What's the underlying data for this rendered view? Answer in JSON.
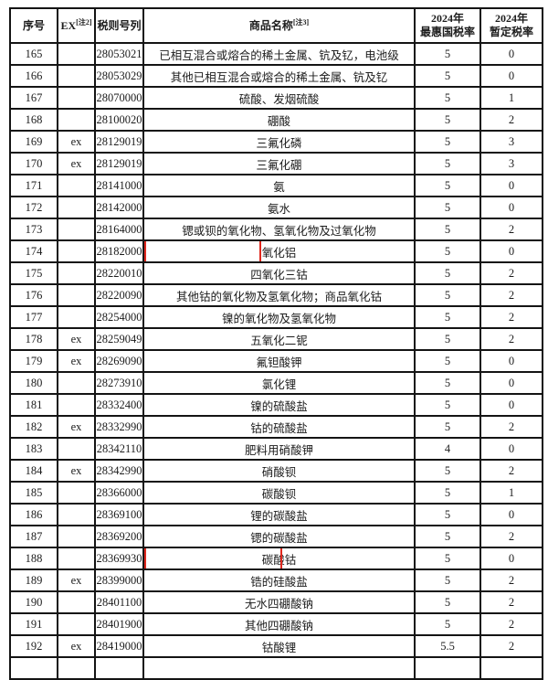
{
  "colors": {
    "highlight_box": "#e0281e",
    "table_border": "#141414",
    "text": "#1c1c1c",
    "background": "#ffffff"
  },
  "table": {
    "headers": {
      "no": "序号",
      "ex": {
        "label": "EX",
        "sup": "[注2]"
      },
      "code": "税则号列",
      "name": {
        "label": "商品名称",
        "sup": "[注3]"
      },
      "mfn": {
        "line1": "2024年",
        "line2": "最惠国税率"
      },
      "temp": {
        "line1": "2024年",
        "line2": "暂定税率"
      }
    },
    "rows": [
      {
        "no": "165",
        "ex": "",
        "code": "28053021",
        "name": "已相互混合或熔合的稀土金属、钪及钇，电池级",
        "mfn": "5",
        "temp": "0"
      },
      {
        "no": "166",
        "ex": "",
        "code": "28053029",
        "name": "其他已相互混合或熔合的稀土金属、钪及钇",
        "mfn": "5",
        "temp": "0"
      },
      {
        "no": "167",
        "ex": "",
        "code": "28070000",
        "name": "硫酸、发烟硫酸",
        "mfn": "5",
        "temp": "1"
      },
      {
        "no": "168",
        "ex": "",
        "code": "28100020",
        "name": "硼酸",
        "mfn": "5",
        "temp": "2"
      },
      {
        "no": "169",
        "ex": "ex",
        "code": "28129019",
        "name": "三氟化磷",
        "mfn": "5",
        "temp": "3"
      },
      {
        "no": "170",
        "ex": "ex",
        "code": "28129019",
        "name": "三氟化硼",
        "mfn": "5",
        "temp": "3"
      },
      {
        "no": "171",
        "ex": "",
        "code": "28141000",
        "name": "氨",
        "mfn": "5",
        "temp": "0"
      },
      {
        "no": "172",
        "ex": "",
        "code": "28142000",
        "name": "氨水",
        "mfn": "5",
        "temp": "0"
      },
      {
        "no": "173",
        "ex": "",
        "code": "28164000",
        "name": "锶或钡的氧化物、氢氧化物及过氧化物",
        "mfn": "5",
        "temp": "2"
      },
      {
        "no": "174",
        "ex": "",
        "code": "28182000",
        "name": "氧化铝",
        "mfn": "5",
        "temp": "0",
        "highlight": true,
        "highlight_width": 128
      },
      {
        "no": "175",
        "ex": "",
        "code": "28220010",
        "name": "四氧化三钴",
        "mfn": "5",
        "temp": "2"
      },
      {
        "no": "176",
        "ex": "",
        "code": "28220090",
        "name": "其他钴的氧化物及氢氧化物；商品氧化钴",
        "mfn": "5",
        "temp": "2"
      },
      {
        "no": "177",
        "ex": "",
        "code": "28254000",
        "name": "镍的氧化物及氢氧化物",
        "mfn": "5",
        "temp": "2"
      },
      {
        "no": "178",
        "ex": "ex",
        "code": "28259049",
        "name": "五氧化二铌",
        "mfn": "5",
        "temp": "2"
      },
      {
        "no": "179",
        "ex": "ex",
        "code": "28269090",
        "name": "氟钽酸钾",
        "mfn": "5",
        "temp": "0"
      },
      {
        "no": "180",
        "ex": "",
        "code": "28273910",
        "name": "氯化锂",
        "mfn": "5",
        "temp": "0"
      },
      {
        "no": "181",
        "ex": "",
        "code": "28332400",
        "name": "镍的硫酸盐",
        "mfn": "5",
        "temp": "0"
      },
      {
        "no": "182",
        "ex": "ex",
        "code": "28332990",
        "name": "钴的硫酸盐",
        "mfn": "5",
        "temp": "2"
      },
      {
        "no": "183",
        "ex": "",
        "code": "28342110",
        "name": "肥料用硝酸钾",
        "mfn": "4",
        "temp": "0"
      },
      {
        "no": "184",
        "ex": "ex",
        "code": "28342990",
        "name": "硝酸钡",
        "mfn": "5",
        "temp": "2"
      },
      {
        "no": "185",
        "ex": "",
        "code": "28366000",
        "name": "碳酸钡",
        "mfn": "5",
        "temp": "1"
      },
      {
        "no": "186",
        "ex": "",
        "code": "28369100",
        "name": "锂的碳酸盐",
        "mfn": "5",
        "temp": "0"
      },
      {
        "no": "187",
        "ex": "",
        "code": "28369200",
        "name": "锶的碳酸盐",
        "mfn": "5",
        "temp": "2"
      },
      {
        "no": "188",
        "ex": "",
        "code": "28369930",
        "name": "碳酸钴",
        "mfn": "5",
        "temp": "0",
        "highlight": true,
        "highlight_width": 151
      },
      {
        "no": "189",
        "ex": "ex",
        "code": "28399000",
        "name": "锆的硅酸盐",
        "mfn": "5",
        "temp": "2"
      },
      {
        "no": "190",
        "ex": "",
        "code": "28401100",
        "name": "无水四硼酸钠",
        "mfn": "5",
        "temp": "2"
      },
      {
        "no": "191",
        "ex": "",
        "code": "28401900",
        "name": "其他四硼酸钠",
        "mfn": "5",
        "temp": "2"
      },
      {
        "no": "192",
        "ex": "ex",
        "code": "28419000",
        "name": "钴酸锂",
        "mfn": "5.5",
        "temp": "2"
      }
    ]
  }
}
